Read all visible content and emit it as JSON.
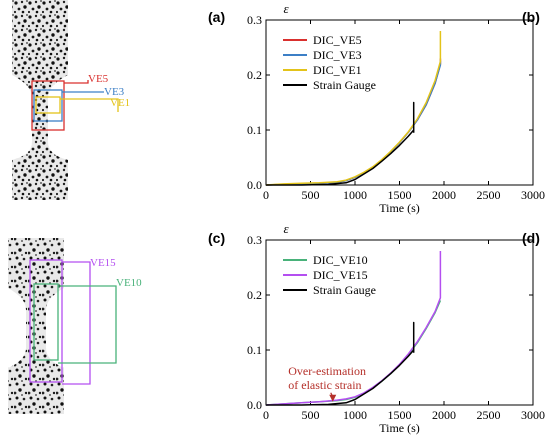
{
  "panel_labels": {
    "a": "(a)",
    "b": "(b)",
    "c": "(c)",
    "d": "(d)"
  },
  "specimen_top": {
    "labels": [
      {
        "text": "VE5",
        "color": "#d9302e"
      },
      {
        "text": "VE3",
        "color": "#3c7fc6"
      },
      {
        "text": "VE1",
        "color": "#e3c31a"
      }
    ]
  },
  "specimen_bottom": {
    "labels": [
      {
        "text": "VE15",
        "color": "#b44ff0"
      },
      {
        "text": "VE10",
        "color": "#49b27a"
      }
    ]
  },
  "chart_data": [
    {
      "type": "line",
      "panel": "b",
      "xlabel": "Time (s)",
      "ylabel": "ε",
      "xlim": [
        0,
        3000
      ],
      "ylim": [
        0,
        0.3
      ],
      "xticks": [
        0,
        500,
        1000,
        1500,
        2000,
        2500,
        3000
      ],
      "yticks": [
        0.0,
        0.1,
        0.2,
        0.3
      ],
      "xtick_labels": [
        "0",
        "500",
        "1000",
        "1500",
        "2000",
        "2500",
        "3000"
      ],
      "ytick_labels": [
        "0.0",
        "0.1",
        "0.2",
        "0.3"
      ],
      "legend_position": "top-left",
      "series": [
        {
          "name": "DIC_VE5",
          "color": "#d9302e",
          "x": [
            0,
            200,
            400,
            600,
            800,
            900,
            1000,
            1100,
            1200,
            1300,
            1400,
            1500,
            1600,
            1700,
            1800,
            1900,
            1960,
            1960
          ],
          "y": [
            0.0,
            0.001,
            0.002,
            0.003,
            0.005,
            0.008,
            0.014,
            0.022,
            0.032,
            0.045,
            0.06,
            0.077,
            0.096,
            0.118,
            0.146,
            0.185,
            0.22,
            0.23
          ]
        },
        {
          "name": "DIC_VE3",
          "color": "#3c7fc6",
          "x": [
            0,
            200,
            400,
            600,
            800,
            900,
            1000,
            1100,
            1200,
            1300,
            1400,
            1500,
            1600,
            1700,
            1800,
            1900,
            1960,
            1960
          ],
          "y": [
            0.0,
            0.001,
            0.002,
            0.003,
            0.005,
            0.008,
            0.014,
            0.022,
            0.032,
            0.045,
            0.06,
            0.077,
            0.096,
            0.118,
            0.146,
            0.185,
            0.218,
            0.226
          ]
        },
        {
          "name": "DIC_VE1",
          "color": "#e3c31a",
          "x": [
            0,
            200,
            400,
            600,
            800,
            900,
            1000,
            1100,
            1200,
            1300,
            1400,
            1500,
            1600,
            1700,
            1800,
            1900,
            1960,
            1960
          ],
          "y": [
            0.0,
            0.002,
            0.003,
            0.004,
            0.006,
            0.009,
            0.015,
            0.023,
            0.033,
            0.046,
            0.061,
            0.078,
            0.097,
            0.12,
            0.15,
            0.19,
            0.225,
            0.28
          ]
        },
        {
          "name": "Strain Gauge",
          "color": "#000000",
          "x": [
            0,
            400,
            700,
            900,
            1000,
            1100,
            1200,
            1300,
            1400,
            1500,
            1600,
            1660,
            1660,
            1660
          ],
          "y": [
            0.0,
            0.0,
            0.001,
            0.004,
            0.01,
            0.02,
            0.03,
            0.043,
            0.057,
            0.072,
            0.089,
            0.1,
            0.15,
            0.095
          ]
        }
      ]
    },
    {
      "type": "line",
      "panel": "d",
      "xlabel": "Time (s)",
      "ylabel": "ε",
      "xlim": [
        0,
        3000
      ],
      "ylim": [
        0,
        0.3
      ],
      "xticks": [
        0,
        500,
        1000,
        1500,
        2000,
        2500,
        3000
      ],
      "yticks": [
        0.0,
        0.1,
        0.2,
        0.3
      ],
      "xtick_labels": [
        "0",
        "500",
        "1000",
        "1500",
        "2000",
        "2500",
        "3000"
      ],
      "ytick_labels": [
        "0.0",
        "0.1",
        "0.2",
        "0.3"
      ],
      "legend_position": "top-left",
      "annotation": {
        "lines": [
          "Over-estimation",
          "of elastic strain"
        ],
        "color": "#b5302a",
        "arrow_to": [
          750,
          0.006
        ]
      },
      "series": [
        {
          "name": "DIC_VE10",
          "color": "#49b27a",
          "x": [
            0,
            200,
            400,
            600,
            800,
            900,
            1000,
            1100,
            1200,
            1300,
            1400,
            1500,
            1600,
            1700,
            1800,
            1900,
            1960,
            1960
          ],
          "y": [
            0.0,
            0.002,
            0.004,
            0.006,
            0.008,
            0.01,
            0.014,
            0.021,
            0.031,
            0.043,
            0.057,
            0.073,
            0.092,
            0.113,
            0.139,
            0.168,
            0.19,
            0.19
          ]
        },
        {
          "name": "DIC_VE15",
          "color": "#b44ff0",
          "x": [
            0,
            200,
            400,
            600,
            800,
            900,
            1000,
            1100,
            1200,
            1300,
            1400,
            1500,
            1600,
            1700,
            1800,
            1900,
            1960,
            1960
          ],
          "y": [
            0.0,
            0.002,
            0.004,
            0.006,
            0.009,
            0.011,
            0.015,
            0.022,
            0.032,
            0.044,
            0.058,
            0.074,
            0.093,
            0.115,
            0.141,
            0.17,
            0.195,
            0.28
          ]
        },
        {
          "name": "Strain Gauge",
          "color": "#000000",
          "x": [
            0,
            400,
            700,
            900,
            1000,
            1100,
            1200,
            1300,
            1400,
            1500,
            1600,
            1660,
            1660,
            1660
          ],
          "y": [
            0.0,
            0.0,
            0.001,
            0.004,
            0.01,
            0.02,
            0.03,
            0.043,
            0.057,
            0.072,
            0.089,
            0.1,
            0.15,
            0.095
          ]
        }
      ]
    }
  ]
}
